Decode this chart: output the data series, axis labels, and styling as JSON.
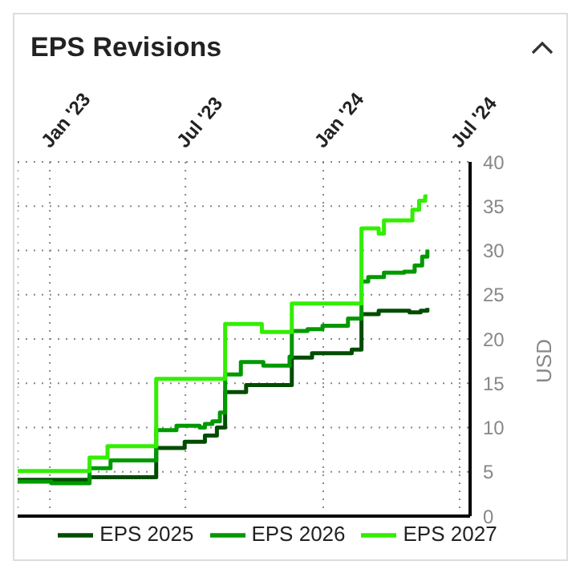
{
  "chart_data": {
    "type": "step",
    "title": "EPS Revisions",
    "ylabel": "USD",
    "xlim": [
      "2022-11-19",
      "2024-07-15"
    ],
    "xticks": [
      {
        "value": "2023-01-01",
        "label": "Jan '23"
      },
      {
        "value": "2023-07-01",
        "label": "Jul '23"
      },
      {
        "value": "2024-01-01",
        "label": "Jan '24"
      },
      {
        "value": "2024-07-01",
        "label": "Jul '24"
      }
    ],
    "ylim": [
      0,
      40
    ],
    "yticks": [
      0,
      5,
      10,
      15,
      20,
      25,
      30,
      35,
      40
    ],
    "grid": true,
    "legend": "bottom",
    "series": [
      {
        "name": "EPS 2025",
        "color": "#004d00",
        "x": [
          "2022-11-19",
          "2023-02-23",
          "2023-05-23",
          "2023-06-30",
          "2023-07-27",
          "2023-08-12",
          "2023-08-23",
          "2023-09-20",
          "2023-11-20",
          "2023-12-17",
          "2024-02-08",
          "2024-02-21",
          "2024-03-15",
          "2024-04-25",
          "2024-05-10",
          "2024-05-19"
        ],
        "values": [
          4.1,
          4.4,
          7.7,
          8.4,
          9.1,
          10.0,
          14.0,
          14.8,
          17.9,
          18.4,
          18.8,
          22.8,
          23.2,
          23.0,
          23.2,
          23.5
        ]
      },
      {
        "name": "EPS 2026",
        "color": "#009900",
        "x": [
          "2022-11-19",
          "2023-01-03",
          "2023-02-23",
          "2023-03-23",
          "2023-05-23",
          "2023-06-19",
          "2023-07-20",
          "2023-07-27",
          "2023-08-06",
          "2023-08-16",
          "2023-08-23",
          "2023-09-13",
          "2023-10-13",
          "2023-11-17",
          "2023-11-20",
          "2023-12-11",
          "2023-12-31",
          "2024-02-03",
          "2024-02-21",
          "2024-03-01",
          "2024-03-22",
          "2024-04-18",
          "2024-05-02",
          "2024-05-12",
          "2024-05-19"
        ],
        "values": [
          3.9,
          3.7,
          5.4,
          6.3,
          9.7,
          10.2,
          10.0,
          10.4,
          10.7,
          11.7,
          16.0,
          17.4,
          17.0,
          18.0,
          20.9,
          21.1,
          21.5,
          22.3,
          26.5,
          27.0,
          27.5,
          27.6,
          28.3,
          29.3,
          30.1
        ]
      },
      {
        "name": "EPS 2027",
        "color": "#33ee00",
        "x": [
          "2022-11-19",
          "2023-02-23",
          "2023-03-19",
          "2023-05-23",
          "2023-08-23",
          "2023-10-11",
          "2023-11-20",
          "2024-02-21",
          "2024-03-15",
          "2024-03-22",
          "2024-04-29",
          "2024-05-08",
          "2024-05-16",
          "2024-05-19"
        ],
        "values": [
          5.1,
          6.6,
          7.9,
          15.5,
          21.7,
          20.8,
          24.0,
          32.5,
          31.9,
          33.4,
          34.6,
          35.6,
          36.1,
          36.1
        ]
      }
    ]
  }
}
